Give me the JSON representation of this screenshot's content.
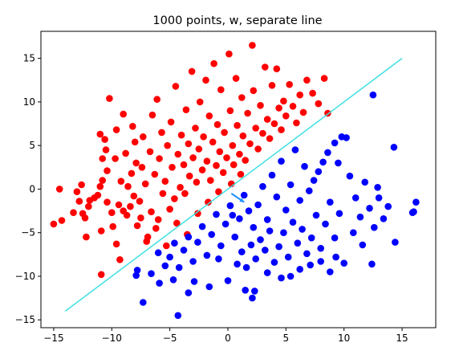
{
  "chart_data": {
    "type": "scatter",
    "title": "1000 points, w, separate line",
    "xlabel": "",
    "ylabel": "",
    "xlim": [
      -16.1,
      17.9
    ],
    "ylim": [
      -15.9,
      18.1
    ],
    "xticks": [
      -15,
      -10,
      -5,
      0,
      5,
      10,
      15
    ],
    "yticks": [
      -15,
      -10,
      -5,
      0,
      5,
      10,
      15
    ],
    "grid": false,
    "point_count": 1000,
    "series": [
      {
        "color": "#ff0000",
        "marker": "circle",
        "points_shown": [
          [
            -15,
            -4
          ],
          [
            -14.5,
            0
          ],
          [
            -14.3,
            -3.6
          ],
          [
            -13.3,
            -2.7
          ],
          [
            -12.6,
            0.5
          ],
          [
            -12.8,
            -1.4
          ],
          [
            -12.5,
            -2.8
          ],
          [
            -12.3,
            -3.3
          ],
          [
            -12.0,
            -2.0
          ],
          [
            -11.9,
            -1.3
          ],
          [
            -11.5,
            -1.0
          ],
          [
            -11.2,
            -0.7
          ],
          [
            -11.0,
            0.3
          ],
          [
            -10.8,
            1.0
          ],
          [
            -11.0,
            6.3
          ],
          [
            -10.8,
            3.5
          ],
          [
            -10.9,
            -9.8
          ],
          [
            -10.6,
            5.7
          ],
          [
            -10.5,
            4.5
          ],
          [
            -10.4,
            2.1
          ],
          [
            -10.9,
            -4.8
          ],
          [
            -10.2,
            10.4
          ],
          [
            -10.0,
            -2.7
          ],
          [
            -9.7,
            3.5
          ],
          [
            -9.6,
            -6.3
          ],
          [
            -9.6,
            6.8
          ],
          [
            -9.4,
            -1.8
          ],
          [
            -9.2,
            0.9
          ],
          [
            -9.0,
            8.6
          ],
          [
            -9.3,
            -8.1
          ],
          [
            -8.8,
            4.1
          ],
          [
            -8.7,
            -3.0
          ],
          [
            -8.6,
            0.3
          ],
          [
            -8.4,
            -2.0
          ],
          [
            -8.3,
            1.8
          ],
          [
            -8.2,
            7.2
          ],
          [
            -8.0,
            5.4
          ],
          [
            -7.9,
            3.0
          ],
          [
            -7.8,
            -4.2
          ],
          [
            -7.6,
            -1.4
          ],
          [
            -7.4,
            2.5
          ],
          [
            -7.3,
            6.0
          ],
          [
            -7.1,
            0.6
          ],
          [
            -6.9,
            -5.5
          ],
          [
            -6.7,
            4.3
          ],
          [
            -6.6,
            -2.6
          ],
          [
            -6.5,
            8.5
          ],
          [
            -6.3,
            1.7
          ],
          [
            -6.1,
            10.3
          ],
          [
            -6.0,
            -3.5
          ],
          [
            -5.9,
            3.5
          ],
          [
            -5.7,
            6.5
          ],
          [
            -5.6,
            -0.5
          ],
          [
            -5.4,
            0.9
          ],
          [
            -5.2,
            5.0
          ],
          [
            -5.0,
            -2.3
          ],
          [
            -4.9,
            7.7
          ],
          [
            -4.8,
            2.5
          ],
          [
            -4.6,
            -1.1
          ],
          [
            -4.5,
            11.8
          ],
          [
            -4.3,
            4.0
          ],
          [
            -4.1,
            0.2
          ],
          [
            -4.0,
            6.2
          ],
          [
            -3.8,
            2.8
          ],
          [
            -3.7,
            -0.5
          ],
          [
            -3.6,
            9.1
          ],
          [
            -3.4,
            5.2
          ],
          [
            -3.3,
            1.5
          ],
          [
            -3.1,
            13.5
          ],
          [
            -3.0,
            3.6
          ],
          [
            -2.8,
            7.0
          ],
          [
            -2.7,
            0.8
          ],
          [
            -2.5,
            4.6
          ],
          [
            -2.4,
            10.0
          ],
          [
            -2.2,
            2.2
          ],
          [
            -2.1,
            6.0
          ],
          [
            -1.9,
            12.5
          ],
          [
            -1.8,
            3.2
          ],
          [
            -1.6,
            8.4
          ],
          [
            -1.5,
            1.0
          ],
          [
            -1.3,
            5.4
          ],
          [
            -1.2,
            14.4
          ],
          [
            -1.0,
            2.7
          ],
          [
            -0.9,
            7.4
          ],
          [
            -0.7,
            4.3
          ],
          [
            -0.6,
            11.4
          ],
          [
            -0.4,
            1.9
          ],
          [
            -0.3,
            6.5
          ],
          [
            -0.1,
            3.6
          ],
          [
            0.1,
            15.5
          ],
          [
            0.2,
            9.0
          ],
          [
            0.4,
            5.0
          ],
          [
            0.5,
            2.8
          ],
          [
            0.7,
            12.7
          ],
          [
            0.8,
            7.3
          ],
          [
            1.0,
            4.0
          ],
          [
            1.2,
            10.5
          ],
          [
            1.3,
            6.1
          ],
          [
            1.5,
            3.3
          ],
          [
            1.7,
            8.7
          ],
          [
            1.9,
            5.2
          ],
          [
            2.1,
            16.5
          ],
          [
            2.2,
            11.3
          ],
          [
            2.4,
            7.0
          ],
          [
            2.6,
            4.6
          ],
          [
            2.8,
            9.6
          ],
          [
            3.0,
            6.4
          ],
          [
            3.2,
            14.0
          ],
          [
            3.4,
            8.0
          ],
          [
            3.6,
            5.8
          ],
          [
            3.8,
            11.9
          ],
          [
            4.0,
            7.5
          ],
          [
            4.2,
            13.8
          ],
          [
            4.4,
            9.3
          ],
          [
            4.6,
            6.8
          ],
          [
            4.8,
            10.1
          ],
          [
            5.0,
            8.4
          ],
          [
            5.3,
            12.0
          ],
          [
            5.6,
            9.5
          ],
          [
            5.9,
            7.6
          ],
          [
            6.2,
            10.8
          ],
          [
            6.5,
            8.8
          ],
          [
            6.8,
            12.5
          ],
          [
            7.3,
            11.0
          ],
          [
            7.8,
            9.8
          ],
          [
            8.3,
            12.7
          ],
          [
            8.6,
            8.7
          ],
          [
            -13.0,
            -0.3
          ],
          [
            -12.2,
            -5.5
          ],
          [
            -10.4,
            -1.5
          ],
          [
            -9.9,
            -4.3
          ],
          [
            -9.0,
            -2.5
          ],
          [
            -8.1,
            -0.8
          ],
          [
            -7.5,
            -3.3
          ],
          [
            -7.0,
            -6.0
          ],
          [
            -6.2,
            -4.5
          ],
          [
            -5.3,
            -6.5
          ],
          [
            -4.4,
            -3.9
          ],
          [
            -3.5,
            -5.2
          ],
          [
            -2.6,
            -2.8
          ],
          [
            -1.7,
            -1.5
          ],
          [
            -0.8,
            -0.3
          ],
          [
            0.3,
            0.6
          ],
          [
            1.1,
            1.7
          ]
        ]
      },
      {
        "color": "#0000ff",
        "marker": "circle",
        "points_shown": [
          [
            -4.3,
            -14.5
          ],
          [
            -7.3,
            -13.0
          ],
          [
            -3.4,
            -11.9
          ],
          [
            -5.9,
            -10.8
          ],
          [
            -7.8,
            -9.3
          ],
          [
            -7.9,
            -9.9
          ],
          [
            -6.6,
            -9.7
          ],
          [
            -4.7,
            -10.4
          ],
          [
            -2.9,
            -10.6
          ],
          [
            -1.6,
            -11.2
          ],
          [
            0.0,
            -10.5
          ],
          [
            1.5,
            -11.6
          ],
          [
            2.1,
            -12.5
          ],
          [
            2.3,
            -11.7
          ],
          [
            3.4,
            -9.6
          ],
          [
            4.6,
            -10.2
          ],
          [
            5.4,
            -10.0
          ],
          [
            6.2,
            -9.2
          ],
          [
            7.1,
            -8.7
          ],
          [
            8.0,
            -8.3
          ],
          [
            8.8,
            -9.5
          ],
          [
            9.3,
            -7.8
          ],
          [
            10.0,
            -8.5
          ],
          [
            12.4,
            -8.6
          ],
          [
            14.4,
            -6.1
          ],
          [
            16.0,
            -2.6
          ],
          [
            16.2,
            -1.5
          ],
          [
            14.3,
            4.8
          ],
          [
            12.5,
            10.8
          ],
          [
            10.2,
            5.9
          ],
          [
            9.8,
            6.0
          ],
          [
            9.2,
            5.3
          ],
          [
            8.6,
            4.2
          ],
          [
            8.2,
            3.1
          ],
          [
            7.8,
            2.0
          ],
          [
            7.4,
            1.0
          ],
          [
            7.0,
            -0.2
          ],
          [
            6.6,
            2.6
          ],
          [
            6.2,
            -1.3
          ],
          [
            5.8,
            4.5
          ],
          [
            5.4,
            0.5
          ],
          [
            5.0,
            -2.4
          ],
          [
            4.6,
            3.2
          ],
          [
            4.2,
            -0.9
          ],
          [
            3.8,
            1.6
          ],
          [
            3.4,
            -3.5
          ],
          [
            3.0,
            0.3
          ],
          [
            2.6,
            -1.8
          ],
          [
            2.2,
            -4.4
          ],
          [
            1.8,
            -2.5
          ],
          [
            1.4,
            -0.7
          ],
          [
            1.0,
            -3.4
          ],
          [
            0.6,
            -5.5
          ],
          [
            0.2,
            -1.9
          ],
          [
            -0.2,
            -4.0
          ],
          [
            -0.6,
            -6.5
          ],
          [
            -1.0,
            -2.9
          ],
          [
            -1.4,
            -5.2
          ],
          [
            -1.8,
            -7.6
          ],
          [
            -2.2,
            -4.3
          ],
          [
            -2.6,
            -6.1
          ],
          [
            -3.0,
            -8.3
          ],
          [
            -3.4,
            -5.5
          ],
          [
            -3.8,
            -7.0
          ],
          [
            -4.2,
            -9.0
          ],
          [
            -4.6,
            -6.2
          ],
          [
            -5.0,
            -7.8
          ],
          [
            -5.4,
            -8.8
          ],
          [
            -6.0,
            -7.3
          ],
          [
            10.5,
            1.5
          ],
          [
            11.0,
            -1.0
          ],
          [
            11.4,
            -3.2
          ],
          [
            11.8,
            0.8
          ],
          [
            12.2,
            -2.2
          ],
          [
            12.6,
            -4.4
          ],
          [
            13.0,
            -1.0
          ],
          [
            13.4,
            -3.4
          ],
          [
            9.6,
            -2.8
          ],
          [
            9.2,
            -5.6
          ],
          [
            8.8,
            -1.5
          ],
          [
            8.4,
            -4.0
          ],
          [
            8.0,
            -6.8
          ],
          [
            7.6,
            -3.0
          ],
          [
            7.2,
            -5.6
          ],
          [
            6.8,
            -7.4
          ],
          [
            6.4,
            -4.6
          ],
          [
            6.0,
            -6.2
          ],
          [
            5.6,
            -3.8
          ],
          [
            5.2,
            -7.8
          ],
          [
            4.8,
            -5.0
          ],
          [
            4.4,
            -6.6
          ],
          [
            4.0,
            -8.4
          ],
          [
            3.6,
            -4.8
          ],
          [
            3.2,
            -7.0
          ],
          [
            2.8,
            -5.8
          ],
          [
            2.4,
            -8.0
          ],
          [
            2.0,
            -6.4
          ],
          [
            1.6,
            -9.0
          ],
          [
            1.2,
            -7.2
          ],
          [
            0.8,
            -8.6
          ],
          [
            0.4,
            -3.0
          ],
          [
            -0.8,
            -8.0
          ],
          [
            9.5,
            3.0
          ],
          [
            10.8,
            -5.0
          ],
          [
            11.6,
            -6.4
          ],
          [
            12.9,
            0.2
          ],
          [
            13.8,
            -2.0
          ],
          [
            15.9,
            -2.7
          ]
        ]
      }
    ],
    "lines": [
      {
        "name": "separate line",
        "color": "#40e0e0",
        "x": [
          -14,
          15
        ],
        "y": [
          -14,
          15
        ]
      },
      {
        "name": "w",
        "color": "#1e90ff",
        "x": [
          0.3,
          1.4
        ],
        "y": [
          -0.5,
          -1.5
        ],
        "arrow": true
      }
    ]
  }
}
